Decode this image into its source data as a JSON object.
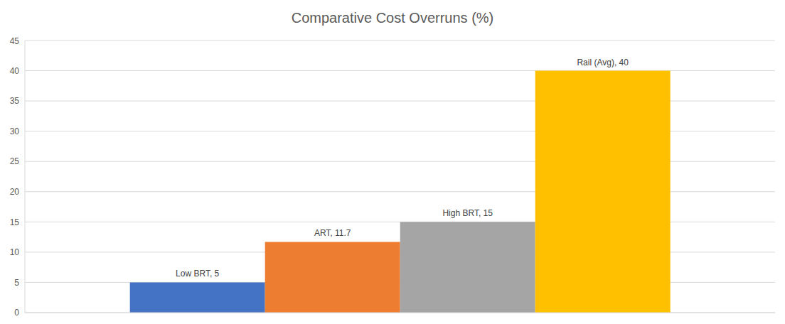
{
  "chart_data": {
    "type": "bar",
    "title": "Comparative Cost Overruns (%)",
    "categories": [
      null
    ],
    "series": [
      {
        "name": "Low BRT",
        "color": "#4472c4",
        "values": [
          5
        ],
        "value_labels": [
          "Low BRT, 5"
        ]
      },
      {
        "name": "ART",
        "color": "#ed7d31",
        "values": [
          11.7
        ],
        "value_labels": [
          "ART, 11.7"
        ]
      },
      {
        "name": "High BRT",
        "color": "#a5a5a5",
        "values": [
          15
        ],
        "value_labels": [
          "High BRT, 15"
        ]
      },
      {
        "name": "Rail (Avg)",
        "color": "#ffc000",
        "values": [
          40
        ],
        "value_labels": [
          "Rail (Avg), 40"
        ]
      }
    ],
    "ylim": [
      0,
      45
    ],
    "yticks": [
      0,
      5,
      10,
      15,
      20,
      25,
      30,
      35,
      40,
      45
    ],
    "grid": true,
    "data_labels": true
  }
}
